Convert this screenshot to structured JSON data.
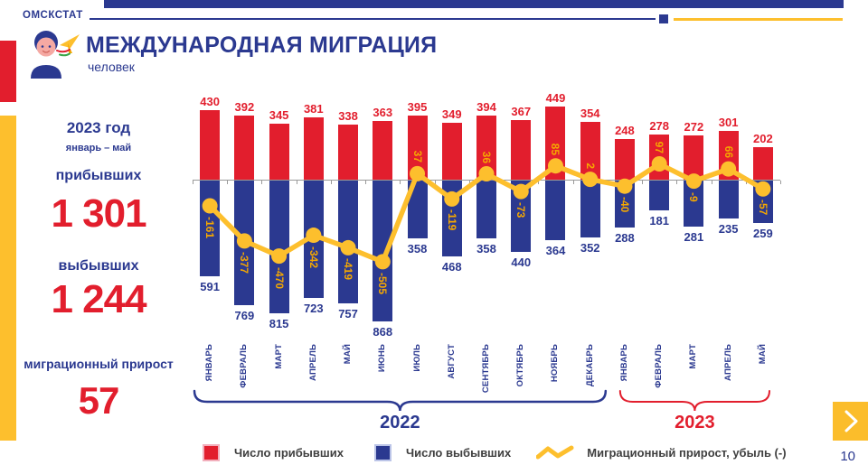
{
  "header": {
    "brand": "ОМСКСТАТ",
    "title": "МЕЖДУНАРОДНАЯ МИГРАЦИЯ",
    "subtitle": "человек"
  },
  "sidebar": {
    "year": "2023 год",
    "period": "январь – май",
    "arrived_label": "прибывших",
    "arrived_value": "1 301",
    "departed_label": "выбывших",
    "departed_value": "1 244",
    "net_label": "миграционный прирост",
    "net_value": "57"
  },
  "legend": {
    "arrived": "Число прибывших",
    "departed": "Число выбывших",
    "net": "Миграционный прирост,  убыль (-)"
  },
  "footer": {
    "page_number": "10"
  },
  "icons": {
    "title_icon": "person-with-plane",
    "next_button_icon": "chevron-right"
  },
  "colors": {
    "navy": "#2B3990",
    "red": "#E21E2D",
    "yellow": "#FDBF2D",
    "legend_text": "#3F3F3F",
    "axis_gray": "#9A9A9A"
  },
  "chart_data": {
    "type": "bar",
    "subtype": "bar+line combo, bars up = arrivals, bars down = departures, line = net migration",
    "categories": [
      "ЯНВАРЬ",
      "ФЕВРАЛЬ",
      "МАРТ",
      "АПРЕЛЬ",
      "МАЙ",
      "ИЮНЬ",
      "ИЮЛЬ",
      "АВГУСТ",
      "СЕНТЯБРЬ",
      "ОКТЯБРЬ",
      "НОЯБРЬ",
      "ДЕКАБРЬ",
      "ЯНВАРЬ",
      "ФЕВРАЛЬ",
      "МАРТ",
      "АПРЕЛЬ",
      "МАЙ"
    ],
    "groups": [
      {
        "label": "2022",
        "start": 0,
        "end": 11,
        "color": "#2B3990"
      },
      {
        "label": "2023",
        "start": 12,
        "end": 16,
        "color": "#E21E2D"
      }
    ],
    "series": [
      {
        "name": "Число прибывших",
        "color": "#E21E2D",
        "direction": "up",
        "values": [
          430,
          392,
          345,
          381,
          338,
          363,
          395,
          349,
          394,
          367,
          449,
          354,
          248,
          278,
          272,
          301,
          202
        ]
      },
      {
        "name": "Число выбывших",
        "color": "#2B3990",
        "direction": "down",
        "values": [
          591,
          769,
          815,
          723,
          757,
          868,
          358,
          468,
          358,
          440,
          364,
          352,
          288,
          181,
          281,
          235,
          259
        ]
      },
      {
        "name": "Миграционный прирост, убыль (-)",
        "color": "#FDBF2D",
        "type": "line",
        "values": [
          -161,
          -377,
          -470,
          -342,
          -419,
          -505,
          37,
          -119,
          36,
          -73,
          85,
          2,
          -40,
          97,
          -9,
          66,
          -57
        ]
      }
    ],
    "axis_color": "#9A9A9A",
    "grid": false,
    "legend_position": "bottom"
  }
}
